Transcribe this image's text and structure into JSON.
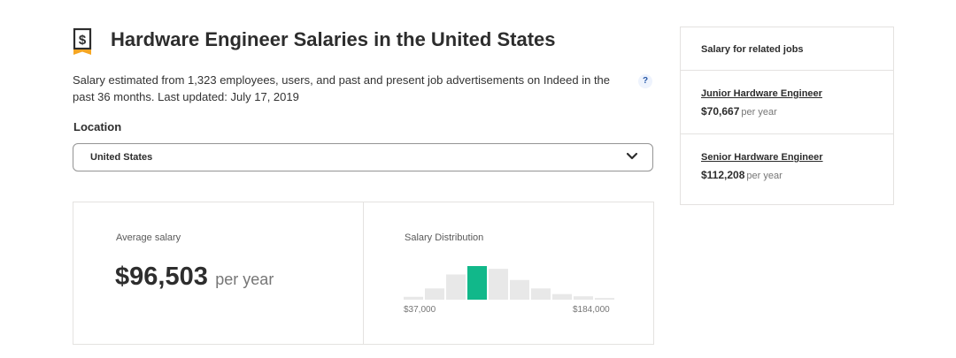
{
  "header": {
    "title": "Hardware Engineer Salaries in the United States",
    "icon": "dollar-icon",
    "description": "Salary estimated from 1,323 employees, users, and past and present job advertisements on Indeed in the past 36 months. Last updated: July 17, 2019",
    "help_label": "?"
  },
  "location": {
    "label": "Location",
    "selected": "United States"
  },
  "average": {
    "label": "Average salary",
    "value": "$96,503",
    "unit": "per year"
  },
  "distribution": {
    "label": "Salary Distribution",
    "min_label": "$37,000",
    "max_label": "$184,000",
    "highlight_color": "#11b88a",
    "bar_color": "#e8e8e8",
    "chart_data": {
      "type": "bar",
      "x_range": [
        "$37,000",
        "$184,000"
      ],
      "values": [
        1,
        4,
        9,
        12,
        11,
        7,
        4,
        2,
        1.2,
        0.6
      ],
      "highlight_index": 3
    }
  },
  "related": {
    "title": "Salary for related jobs",
    "jobs": [
      {
        "name": "Junior Hardware Engineer",
        "salary": "$70,667",
        "unit": "per year"
      },
      {
        "name": "Senior Hardware Engineer",
        "salary": "$112,208",
        "unit": "per year"
      }
    ]
  }
}
